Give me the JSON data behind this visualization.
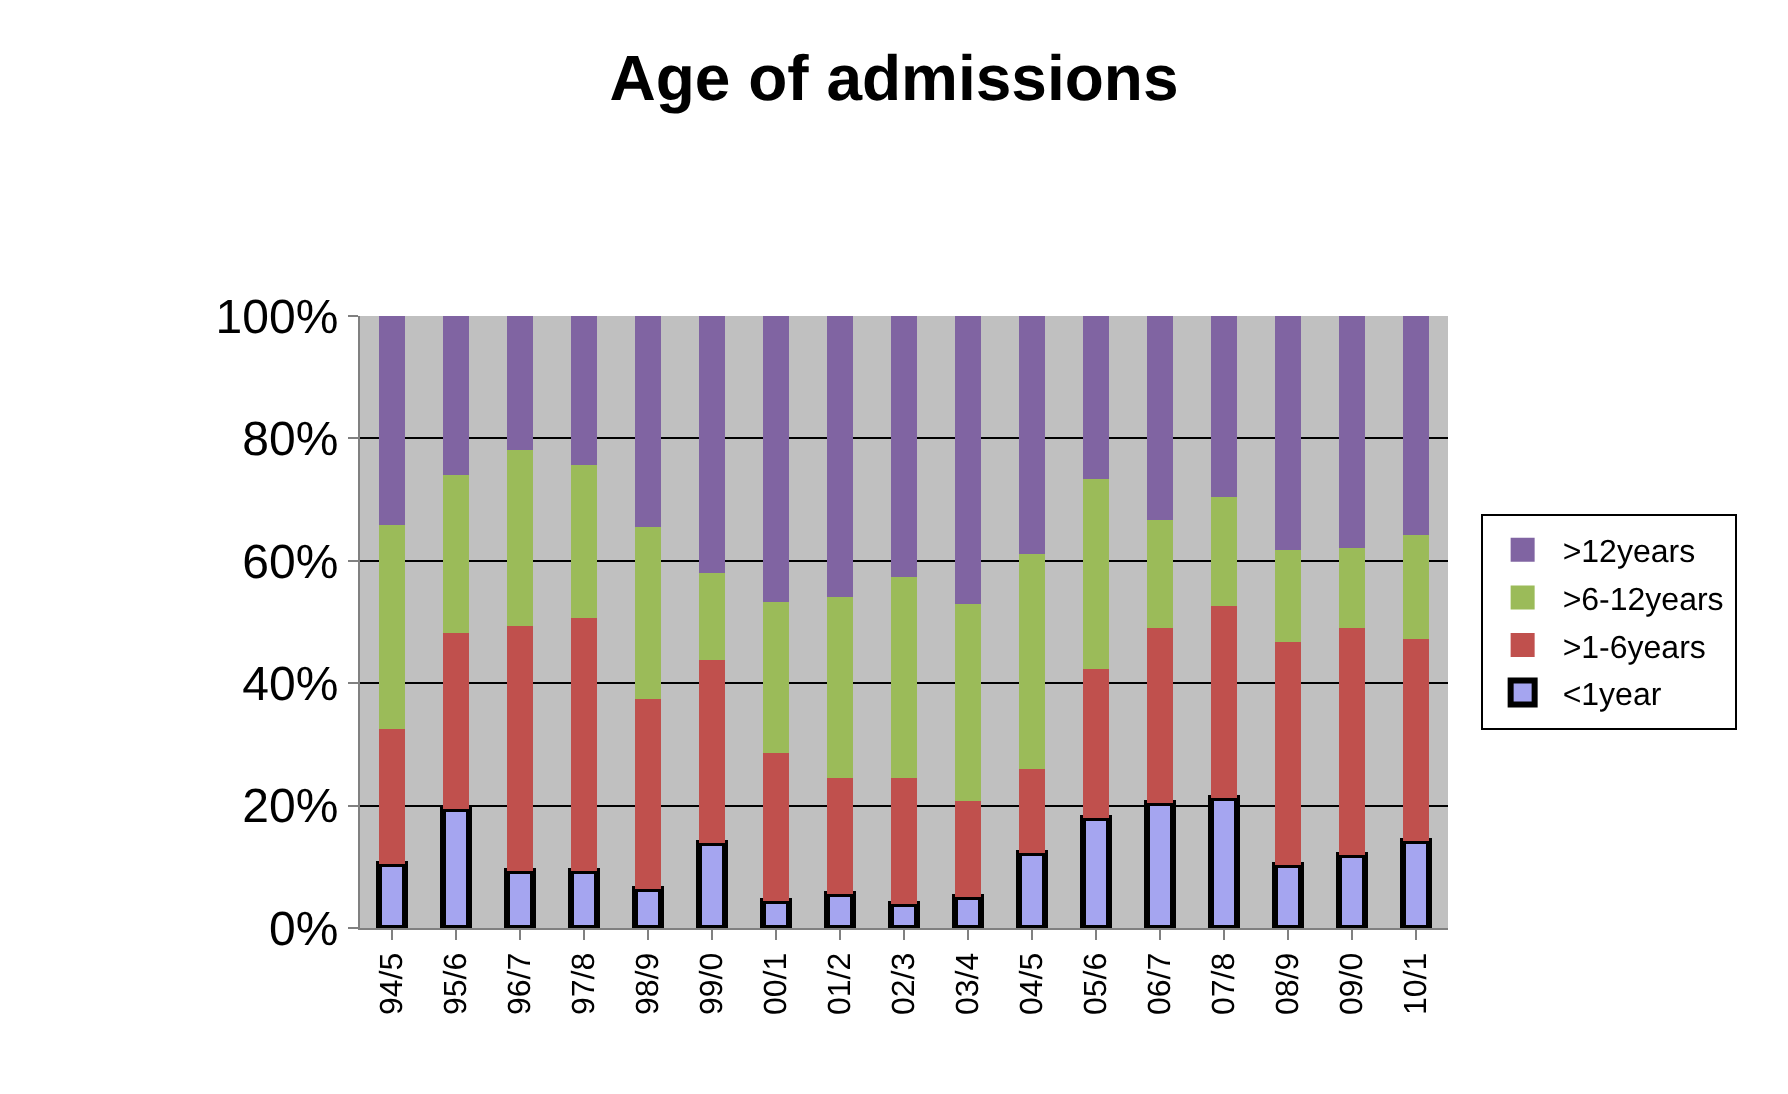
{
  "chart_data": {
    "type": "bar",
    "title": "Age of admissions",
    "stacked": true,
    "categories": [
      "94/5",
      "95/6",
      "96/7",
      "97/8",
      "98/9",
      "99/0",
      "00/1",
      "01/2",
      "02/3",
      "03/4",
      "04/5",
      "05/6",
      "06/7",
      "07/8",
      "08/9",
      "09/0",
      "10/1"
    ],
    "series": [
      {
        "name": "<1year",
        "color": "#a5a5f0",
        "values": [
          10.4,
          19.5,
          9.3,
          9.3,
          6.4,
          13.9,
          4.4,
          5.5,
          4.0,
          5.1,
          12.2,
          18.0,
          20.5,
          21.3,
          10.3,
          12.0,
          14.2
        ]
      },
      {
        "name": ">1-6years",
        "color": "#c0504d",
        "values": [
          22.1,
          28.7,
          40.1,
          41.3,
          31.0,
          29.9,
          24.2,
          19.0,
          20.5,
          15.7,
          13.8,
          24.3,
          28.6,
          31.3,
          36.4,
          37.1,
          33.1
        ]
      },
      {
        "name": ">6-12years",
        "color": "#9bbb59",
        "values": [
          33.4,
          25.8,
          28.7,
          25.0,
          28.1,
          14.2,
          24.6,
          29.6,
          32.8,
          32.2,
          35.1,
          31.1,
          17.6,
          17.9,
          15.0,
          13.0,
          16.9
        ]
      },
      {
        "name": ">12years",
        "color": "#8064a2",
        "values": [
          34.1,
          26.0,
          21.9,
          24.4,
          34.5,
          42.0,
          46.8,
          45.9,
          42.7,
          47.0,
          38.9,
          26.6,
          33.3,
          29.5,
          38.3,
          37.9,
          35.8
        ]
      }
    ],
    "ylim": [
      0,
      100
    ],
    "yticks": [
      {
        "value": 0,
        "label": "0%"
      },
      {
        "value": 20,
        "label": "20%"
      },
      {
        "value": 40,
        "label": "40%"
      },
      {
        "value": 60,
        "label": "60%"
      },
      {
        "value": 80,
        "label": "80%"
      },
      {
        "value": 100,
        "label": "100%"
      }
    ],
    "grid": "y",
    "legend": "right"
  }
}
